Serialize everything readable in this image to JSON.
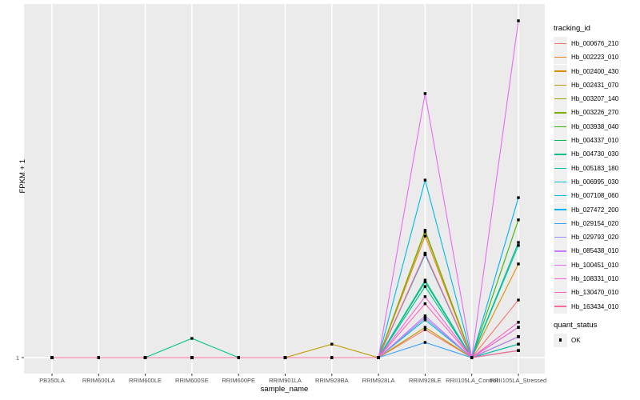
{
  "figure": {
    "background": "#ffffff",
    "panel_background": "#ebebeb",
    "gridline_color": "#ffffff",
    "tick_color": "#333333",
    "point_color": "#000000",
    "tick_text_color": "#4d4d4d"
  },
  "chart_data": {
    "type": "line",
    "title": "",
    "xlabel": "sample_name",
    "ylabel": "FPKM + 1",
    "ytick_labels": [
      "1"
    ],
    "y_scale_note": "Only the value 1 is labeled on the y axis; series values below are relative heights where 0 = baseline (FPKM+1 = 1) and 1 = top of panel (maximum observed value).",
    "legend_position": "right",
    "grid": "white vertical gridline per sample; horizontal gridline at y=1",
    "marker": "black-square",
    "x_categories": [
      "PB350LA",
      "RRIM600LA",
      "RRIM600LE",
      "RRIM600SE",
      "RRIM600PE",
      "RRIM901LA",
      "RRIM928BA",
      "RRIM928LA",
      "RRIM928LE",
      "RRII105LA_Control",
      "RRII105LA_Stressed"
    ],
    "legend_title": "tracking_id",
    "series": [
      {
        "name": "Hb_000676_210",
        "color": "#F8766D",
        "values": [
          0,
          0,
          0,
          0,
          0,
          0,
          0,
          0,
          0.083,
          0,
          0.171
        ]
      },
      {
        "name": "Hb_002223_010",
        "color": "#E88526",
        "values": [
          0,
          0,
          0,
          0,
          0,
          0,
          0,
          0,
          0.361,
          0,
          0.062
        ]
      },
      {
        "name": "Hb_002400_430",
        "color": "#D89000",
        "values": [
          0,
          0,
          0,
          0,
          0,
          0,
          0,
          0,
          0.306,
          0,
          0.278
        ]
      },
      {
        "name": "Hb_002431_070",
        "color": "#C09B00",
        "values": [
          0,
          0,
          0,
          0,
          0,
          0,
          0.04,
          0,
          0.09,
          0,
          0.04
        ]
      },
      {
        "name": "Hb_003207_140",
        "color": "#A3A500",
        "values": [
          0,
          0,
          0,
          0,
          0,
          0,
          0,
          0,
          0.373,
          0,
          0.021
        ]
      },
      {
        "name": "Hb_003226_270",
        "color": "#7CAE00",
        "values": [
          0,
          0,
          0,
          0,
          0,
          0,
          0,
          0,
          0.378,
          0,
          0.021
        ]
      },
      {
        "name": "Hb_003938_040",
        "color": "#39B600",
        "values": [
          0,
          0,
          0,
          0,
          0,
          0,
          0,
          0,
          0.306,
          0,
          0.409
        ]
      },
      {
        "name": "Hb_004337_010",
        "color": "#00BB4E",
        "values": [
          0,
          0,
          0,
          0,
          0,
          0,
          0,
          0,
          0.225,
          0,
          0.062
        ]
      },
      {
        "name": "Hb_004730_030",
        "color": "#00C087",
        "values": [
          0,
          0,
          0,
          0.057,
          0,
          0,
          0,
          0,
          0.211,
          0,
          0.342
        ]
      },
      {
        "name": "Hb_005183_180",
        "color": "#00C1AB",
        "values": [
          0,
          0,
          0,
          0,
          0,
          0,
          0,
          0,
          0.23,
          0,
          0.333
        ]
      },
      {
        "name": "Hb_006995_030",
        "color": "#00BFC4",
        "values": [
          0,
          0,
          0,
          0,
          0,
          0,
          0,
          0,
          0.112,
          0,
          0.04
        ]
      },
      {
        "name": "Hb_007108_060",
        "color": "#00BAE0",
        "values": [
          0,
          0,
          0,
          0,
          0,
          0,
          0,
          0,
          0.527,
          0,
          0.09
        ]
      },
      {
        "name": "Hb_027472_200",
        "color": "#00B0F6",
        "values": [
          0,
          0,
          0,
          0,
          0,
          0,
          0,
          0,
          0.306,
          0,
          0.475
        ]
      },
      {
        "name": "Hb_029154_020",
        "color": "#35A2FF",
        "values": [
          0,
          0,
          0,
          0,
          0,
          0,
          0,
          0,
          0.045,
          0,
          0.021
        ]
      },
      {
        "name": "Hb_029793_020",
        "color": "#9590FF",
        "values": [
          0,
          0,
          0,
          0,
          0,
          0,
          0,
          0,
          0.118,
          0,
          0.021
        ]
      },
      {
        "name": "Hb_085438_010",
        "color": "#C77CFF",
        "values": [
          0,
          0,
          0,
          0,
          0,
          0,
          0,
          0,
          0.124,
          0,
          0.062
        ]
      },
      {
        "name": "Hb_100451_010",
        "color": "#E76BF3",
        "values": [
          0,
          0,
          0,
          0,
          0,
          0,
          0,
          0,
          0.784,
          0,
          1.0
        ]
      },
      {
        "name": "Hb_108331_010",
        "color": "#FA62DB",
        "values": [
          0,
          0,
          0,
          0,
          0,
          0,
          0,
          0,
          0.181,
          0,
          0.09
        ]
      },
      {
        "name": "Hb_130470_010",
        "color": "#FF62BC",
        "values": [
          0,
          0,
          0,
          0,
          0,
          0,
          0,
          0,
          0.16,
          0,
          0.105
        ]
      },
      {
        "name": "Hb_163434_010",
        "color": "#FF6A98",
        "values": [
          0,
          0,
          0,
          0,
          0,
          0,
          0,
          0,
          0.31,
          0,
          0.021
        ]
      }
    ],
    "quant_status": {
      "title": "quant_status",
      "items": [
        {
          "label": "OK",
          "marker": "black-square"
        }
      ]
    }
  }
}
